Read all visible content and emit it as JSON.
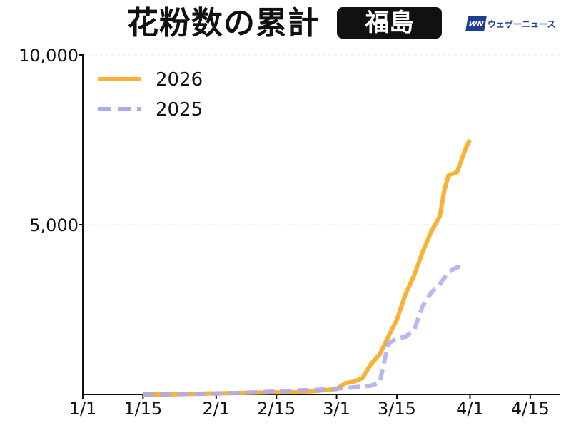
{
  "header": {
    "title": "花粉数の累計",
    "region": "福島",
    "logo_mark": "WN",
    "logo_text": "ウェザーニュース"
  },
  "chart_data": {
    "type": "line",
    "title": "花粉数の累計",
    "xlabel": "",
    "ylabel": "",
    "x_tick_labels": [
      "1/1",
      "1/15",
      "2/1",
      "2/15",
      "3/1",
      "3/15",
      "4/1",
      "4/15"
    ],
    "y_tick_labels": [
      "5,000",
      "10,000"
    ],
    "y_ticks": [
      5000,
      10000
    ],
    "ylim": [
      0,
      10000
    ],
    "x_domain": [
      "1/1",
      "4/22"
    ],
    "grid": "horizontal dotted",
    "legend_position": "top-left",
    "series": [
      {
        "name": "2026",
        "color": "#f9b233",
        "style": "solid",
        "points": [
          [
            "1/15",
            0
          ],
          [
            "1/20",
            0
          ],
          [
            "1/25",
            10
          ],
          [
            "1/30",
            30
          ],
          [
            "2/5",
            40
          ],
          [
            "2/10",
            50
          ],
          [
            "2/15",
            60
          ],
          [
            "2/20",
            70
          ],
          [
            "2/25",
            110
          ],
          [
            "3/1",
            160
          ],
          [
            "3/3",
            330
          ],
          [
            "3/5",
            380
          ],
          [
            "3/7",
            480
          ],
          [
            "3/9",
            900
          ],
          [
            "3/11",
            1180
          ],
          [
            "3/13",
            1700
          ],
          [
            "3/15",
            2200
          ],
          [
            "3/17",
            2950
          ],
          [
            "3/19",
            3500
          ],
          [
            "3/21",
            4200
          ],
          [
            "3/23",
            4800
          ],
          [
            "3/25",
            5250
          ],
          [
            "3/26",
            6000
          ],
          [
            "3/27",
            6450
          ],
          [
            "3/29",
            6550
          ],
          [
            "3/31",
            7250
          ],
          [
            "4/1",
            7500
          ]
        ]
      },
      {
        "name": "2025",
        "color": "#aaaaf5",
        "style": "dashed",
        "points": [
          [
            "1/15",
            0
          ],
          [
            "1/20",
            5
          ],
          [
            "1/25",
            10
          ],
          [
            "1/30",
            20
          ],
          [
            "2/5",
            40
          ],
          [
            "2/10",
            60
          ],
          [
            "2/15",
            90
          ],
          [
            "2/20",
            120
          ],
          [
            "2/25",
            140
          ],
          [
            "3/1",
            170
          ],
          [
            "3/5",
            210
          ],
          [
            "3/9",
            260
          ],
          [
            "3/11",
            350
          ],
          [
            "3/13",
            1500
          ],
          [
            "3/15",
            1650
          ],
          [
            "3/17",
            1700
          ],
          [
            "3/19",
            1900
          ],
          [
            "3/21",
            2600
          ],
          [
            "3/23",
            3000
          ],
          [
            "3/25",
            3250
          ],
          [
            "3/27",
            3600
          ],
          [
            "3/29",
            3750
          ],
          [
            "3/31",
            3780
          ]
        ]
      }
    ]
  }
}
